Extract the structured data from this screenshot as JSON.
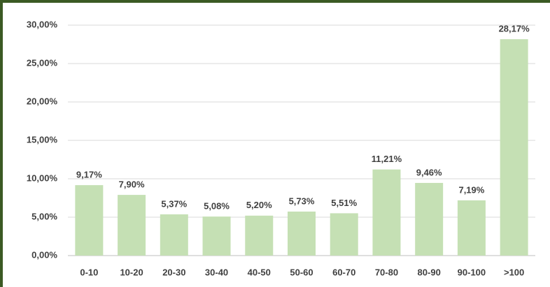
{
  "chart_data": {
    "type": "bar",
    "categories": [
      "0-10",
      "10-20",
      "20-30",
      "30-40",
      "40-50",
      "50-60",
      "60-70",
      "70-80",
      "80-90",
      "90-100",
      ">100"
    ],
    "values": [
      9.17,
      7.9,
      5.37,
      5.08,
      5.2,
      5.73,
      5.51,
      11.21,
      9.46,
      7.19,
      28.17
    ],
    "value_labels": [
      "9,17%",
      "7,90%",
      "5,37%",
      "5,08%",
      "5,20%",
      "5,73%",
      "5,51%",
      "11,21%",
      "9,46%",
      "7,19%",
      "28,17%"
    ],
    "color": "#c5e0b4",
    "ylim": [
      0,
      30
    ],
    "yticks": [
      {
        "value": 0,
        "label": "0,00%"
      },
      {
        "value": 5,
        "label": "5,00%"
      },
      {
        "value": 10,
        "label": "10,00%"
      },
      {
        "value": 15,
        "label": "15,00%"
      },
      {
        "value": 20,
        "label": "20,00%"
      },
      {
        "value": 25,
        "label": "25,00%"
      },
      {
        "value": 30,
        "label": "30,00%"
      }
    ],
    "grid": true
  }
}
